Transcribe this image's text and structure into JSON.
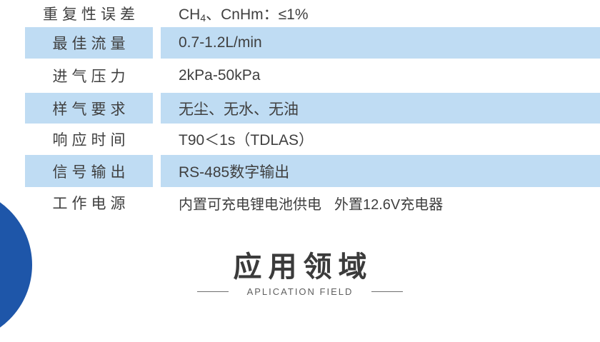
{
  "table": {
    "rows": [
      {
        "label": "重复性误差",
        "value_prefix": "CH",
        "value_sub": "4",
        "value_suffix": "、CnHm：≤1%"
      },
      {
        "label": "最佳流量",
        "value": "0.7-1.2L/min"
      },
      {
        "label": "进气压力",
        "value": "2kPa-50kPa"
      },
      {
        "label": "样气要求",
        "value": "无尘、无水、无油"
      },
      {
        "label": "响应时间",
        "value": "T90＜1s（TDLAS）"
      },
      {
        "label": "信号输出",
        "value": "RS-485数字输出"
      },
      {
        "label": "工作电源",
        "value": "内置可充电锂电池供电",
        "value2": "外置12.6V充电器"
      }
    ]
  },
  "section": {
    "title": "应用领域",
    "subtitle": "APLICATION FIELD"
  },
  "colors": {
    "row_highlight": "#bfdcf3",
    "circle_blue": "#1e56a9",
    "text": "#3f3f3f"
  }
}
